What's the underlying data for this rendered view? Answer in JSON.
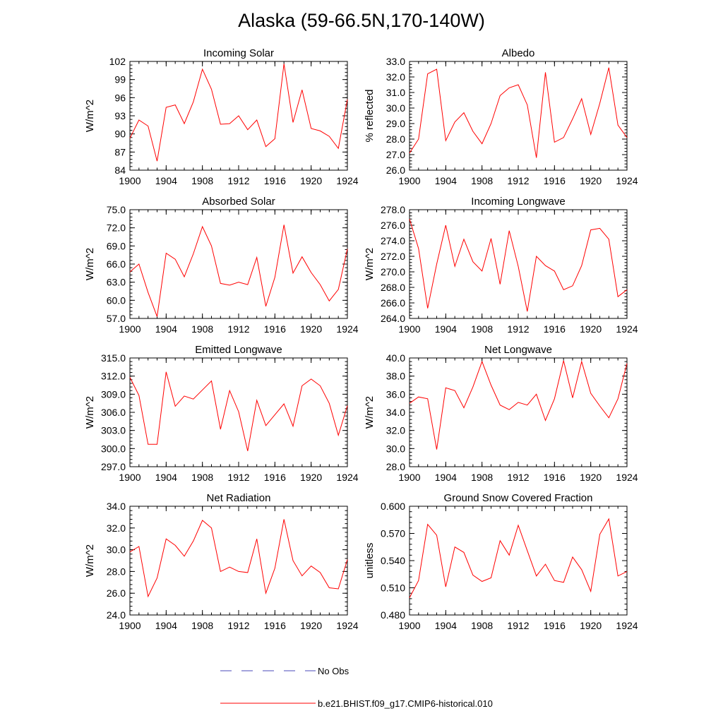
{
  "title": "Alaska (59-66.5N,170-140W)",
  "legend": [
    {
      "label": "No Obs",
      "color": "#4a4ab8",
      "dash": true
    },
    {
      "label": "b.e21.BHIST.f09_g17.CMIP6-historical.010",
      "color": "#ff0000",
      "dash": false
    }
  ],
  "chart_data": [
    {
      "type": "line",
      "title": "Incoming Solar",
      "ylabel": "W/m^2",
      "xlim": [
        1900,
        1924
      ],
      "ylim": [
        84,
        102
      ],
      "x_ticks": [
        "1900",
        "1904",
        "1908",
        "1912",
        "1916",
        "1920",
        "1924"
      ],
      "y_ticks": [
        "84",
        "87",
        "90",
        "93",
        "96",
        "99",
        "102"
      ],
      "series": [
        {
          "color": "#ff0000",
          "x": [
            1900,
            1901,
            1902,
            1903,
            1904,
            1905,
            1906,
            1907,
            1908,
            1909,
            1910,
            1911,
            1912,
            1913,
            1914,
            1915,
            1916,
            1917,
            1918,
            1919,
            1920,
            1921,
            1922,
            1923,
            1924
          ],
          "values": [
            89.3,
            92.3,
            91.3,
            85.5,
            94.4,
            94.8,
            91.7,
            95.3,
            100.7,
            97.4,
            91.6,
            91.7,
            93.0,
            90.7,
            92.3,
            87.9,
            89.2,
            101.6,
            91.9,
            97.3,
            90.9,
            90.5,
            89.6,
            87.6,
            95.7
          ]
        }
      ]
    },
    {
      "type": "line",
      "title": "Albedo",
      "ylabel": "% reflected",
      "xlim": [
        1900,
        1924
      ],
      "ylim": [
        26.0,
        33.0
      ],
      "x_ticks": [
        "1900",
        "1904",
        "1908",
        "1912",
        "1916",
        "1920",
        "1924"
      ],
      "y_ticks": [
        "26.0",
        "27.0",
        "28.0",
        "29.0",
        "30.0",
        "31.0",
        "32.0",
        "33.0"
      ],
      "series": [
        {
          "color": "#ff0000",
          "x": [
            1900,
            1901,
            1902,
            1903,
            1904,
            1905,
            1906,
            1907,
            1908,
            1909,
            1910,
            1911,
            1912,
            1913,
            1914,
            1915,
            1916,
            1917,
            1918,
            1919,
            1920,
            1921,
            1922,
            1923,
            1924
          ],
          "values": [
            27.1,
            28.0,
            32.2,
            32.5,
            27.9,
            29.1,
            29.7,
            28.5,
            27.7,
            29.0,
            30.8,
            31.3,
            31.5,
            30.2,
            26.8,
            32.3,
            27.8,
            28.1,
            29.3,
            30.6,
            28.3,
            30.3,
            32.6,
            28.9,
            28.1
          ]
        }
      ]
    },
    {
      "type": "line",
      "title": "Absorbed Solar",
      "ylabel": "W/m^2",
      "xlim": [
        1900,
        1924
      ],
      "ylim": [
        57.0,
        75.0
      ],
      "x_ticks": [
        "1900",
        "1904",
        "1908",
        "1912",
        "1916",
        "1920",
        "1924"
      ],
      "y_ticks": [
        "57.0",
        "60.0",
        "63.0",
        "66.0",
        "69.0",
        "72.0",
        "75.0"
      ],
      "series": [
        {
          "color": "#ff0000",
          "x": [
            1900,
            1901,
            1902,
            1903,
            1904,
            1905,
            1906,
            1907,
            1908,
            1909,
            1910,
            1911,
            1912,
            1913,
            1914,
            1915,
            1916,
            1917,
            1918,
            1919,
            1920,
            1921,
            1922,
            1923,
            1924
          ],
          "values": [
            64.7,
            66.0,
            61.3,
            57.3,
            67.8,
            66.8,
            63.9,
            67.7,
            72.2,
            69.0,
            62.8,
            62.5,
            63.0,
            62.6,
            67.1,
            59.0,
            63.8,
            72.5,
            64.5,
            67.2,
            64.6,
            62.6,
            59.9,
            61.8,
            68.5
          ]
        }
      ]
    },
    {
      "type": "line",
      "title": "Incoming Longwave",
      "ylabel": "W/m^2",
      "xlim": [
        1900,
        1924
      ],
      "ylim": [
        264.0,
        278.0
      ],
      "x_ticks": [
        "1900",
        "1904",
        "1908",
        "1912",
        "1916",
        "1920",
        "1924"
      ],
      "y_ticks": [
        "264.0",
        "266.0",
        "268.0",
        "270.0",
        "272.0",
        "274.0",
        "276.0",
        "278.0"
      ],
      "series": [
        {
          "color": "#ff0000",
          "x": [
            1900,
            1901,
            1902,
            1903,
            1904,
            1905,
            1906,
            1907,
            1908,
            1909,
            1910,
            1911,
            1912,
            1913,
            1914,
            1915,
            1916,
            1917,
            1918,
            1919,
            1920,
            1921,
            1922,
            1923,
            1924
          ],
          "values": [
            276.8,
            273.0,
            265.3,
            271.0,
            276.0,
            270.7,
            274.2,
            271.3,
            270.1,
            274.3,
            268.4,
            275.3,
            270.7,
            264.9,
            272.0,
            270.8,
            270.1,
            267.7,
            268.2,
            270.8,
            275.4,
            275.6,
            274.2,
            266.8,
            267.7
          ]
        }
      ]
    },
    {
      "type": "line",
      "title": "Emitted Longwave",
      "ylabel": "W/m^2",
      "xlim": [
        1900,
        1924
      ],
      "ylim": [
        297.0,
        315.0
      ],
      "x_ticks": [
        "1900",
        "1904",
        "1908",
        "1912",
        "1916",
        "1920",
        "1924"
      ],
      "y_ticks": [
        "297.0",
        "300.0",
        "303.0",
        "306.0",
        "309.0",
        "312.0",
        "315.0"
      ],
      "series": [
        {
          "color": "#ff0000",
          "x": [
            1900,
            1901,
            1902,
            1903,
            1904,
            1905,
            1906,
            1907,
            1908,
            1909,
            1910,
            1911,
            1912,
            1913,
            1914,
            1915,
            1916,
            1917,
            1918,
            1919,
            1920,
            1921,
            1922,
            1923,
            1924
          ],
          "values": [
            311.8,
            308.8,
            300.7,
            300.7,
            312.7,
            307.0,
            308.7,
            308.2,
            309.7,
            311.2,
            303.2,
            309.6,
            306.1,
            299.6,
            308.0,
            303.8,
            305.6,
            307.4,
            303.7,
            310.4,
            311.5,
            310.4,
            307.5,
            302.2,
            307.1
          ]
        }
      ]
    },
    {
      "type": "line",
      "title": "Net Longwave",
      "ylabel": "W/m^2",
      "xlim": [
        1900,
        1924
      ],
      "ylim": [
        28.0,
        40.0
      ],
      "x_ticks": [
        "1900",
        "1904",
        "1908",
        "1912",
        "1916",
        "1920",
        "1924"
      ],
      "y_ticks": [
        "28.0",
        "30.0",
        "32.0",
        "34.0",
        "36.0",
        "38.0",
        "40.0"
      ],
      "series": [
        {
          "color": "#ff0000",
          "x": [
            1900,
            1901,
            1902,
            1903,
            1904,
            1905,
            1906,
            1907,
            1908,
            1909,
            1910,
            1911,
            1912,
            1913,
            1914,
            1915,
            1916,
            1917,
            1918,
            1919,
            1920,
            1921,
            1922,
            1923,
            1924
          ],
          "values": [
            35.0,
            35.7,
            35.5,
            29.9,
            36.7,
            36.4,
            34.5,
            36.8,
            39.6,
            37.0,
            34.8,
            34.3,
            35.1,
            34.8,
            36.0,
            33.1,
            35.5,
            39.7,
            35.6,
            39.6,
            36.1,
            34.7,
            33.4,
            35.5,
            39.4
          ]
        }
      ]
    },
    {
      "type": "line",
      "title": "Net Radiation",
      "ylabel": "W/m^2",
      "xlim": [
        1900,
        1924
      ],
      "ylim": [
        24.0,
        34.0
      ],
      "x_ticks": [
        "1900",
        "1904",
        "1908",
        "1912",
        "1916",
        "1920",
        "1924"
      ],
      "y_ticks": [
        "24.0",
        "26.0",
        "28.0",
        "30.0",
        "32.0",
        "34.0"
      ],
      "series": [
        {
          "color": "#ff0000",
          "x": [
            1900,
            1901,
            1902,
            1903,
            1904,
            1905,
            1906,
            1907,
            1908,
            1909,
            1910,
            1911,
            1912,
            1913,
            1914,
            1915,
            1916,
            1917,
            1918,
            1919,
            1920,
            1921,
            1922,
            1923,
            1924
          ],
          "values": [
            29.8,
            30.3,
            25.7,
            27.4,
            31.0,
            30.4,
            29.4,
            30.8,
            32.7,
            32.0,
            28.0,
            28.4,
            28.0,
            27.9,
            31.0,
            26.0,
            28.3,
            32.8,
            29.0,
            27.6,
            28.5,
            27.9,
            26.5,
            26.4,
            29.1
          ]
        }
      ]
    },
    {
      "type": "line",
      "title": "Ground Snow Covered Fraction",
      "ylabel": "unitless",
      "xlim": [
        1900,
        1924
      ],
      "ylim": [
        0.48,
        0.6
      ],
      "x_ticks": [
        "1900",
        "1904",
        "1908",
        "1912",
        "1916",
        "1920",
        "1924"
      ],
      "y_ticks": [
        "0.480",
        "0.510",
        "0.540",
        "0.570",
        "0.600"
      ],
      "series": [
        {
          "color": "#ff0000",
          "x": [
            1900,
            1901,
            1902,
            1903,
            1904,
            1905,
            1906,
            1907,
            1908,
            1909,
            1910,
            1911,
            1912,
            1913,
            1914,
            1915,
            1916,
            1917,
            1918,
            1919,
            1920,
            1921,
            1922,
            1923,
            1924
          ],
          "values": [
            0.499,
            0.518,
            0.58,
            0.568,
            0.511,
            0.555,
            0.549,
            0.524,
            0.517,
            0.521,
            0.562,
            0.546,
            0.579,
            0.551,
            0.523,
            0.536,
            0.518,
            0.516,
            0.544,
            0.53,
            0.506,
            0.569,
            0.586,
            0.523,
            0.528
          ]
        }
      ]
    }
  ]
}
